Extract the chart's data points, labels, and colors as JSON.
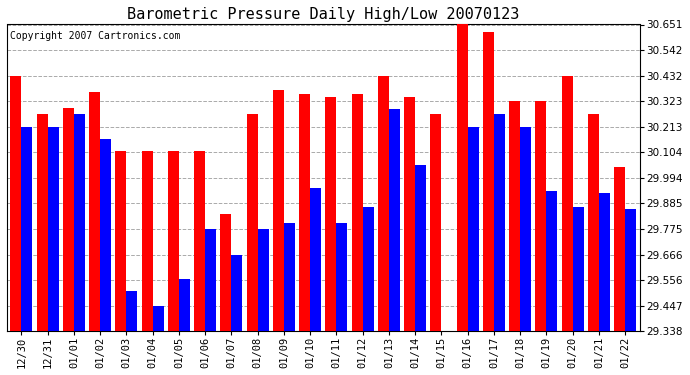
{
  "title": "Barometric Pressure Daily High/Low 20070123",
  "copyright": "Copyright 2007 Cartronics.com",
  "dates": [
    "12/30",
    "12/31",
    "01/01",
    "01/02",
    "01/03",
    "01/04",
    "01/05",
    "01/06",
    "01/07",
    "01/08",
    "01/09",
    "01/10",
    "01/11",
    "01/12",
    "01/13",
    "01/14",
    "01/15",
    "01/16",
    "01/17",
    "01/18",
    "01/19",
    "01/20",
    "01/21",
    "01/22"
  ],
  "highs": [
    30.432,
    30.27,
    30.295,
    30.36,
    30.11,
    30.11,
    30.11,
    30.108,
    29.84,
    30.27,
    30.37,
    30.355,
    30.34,
    30.355,
    30.432,
    30.34,
    30.27,
    30.651,
    30.62,
    30.323,
    30.323,
    30.432,
    30.27,
    30.04
  ],
  "lows": [
    30.213,
    30.213,
    30.27,
    30.16,
    29.51,
    29.447,
    29.56,
    29.775,
    29.666,
    29.775,
    29.8,
    29.95,
    29.8,
    29.87,
    30.29,
    30.05,
    29.27,
    30.213,
    30.27,
    30.213,
    29.94,
    29.87,
    29.93,
    29.86
  ],
  "ylim_min": 29.338,
  "ylim_max": 30.651,
  "yticks": [
    29.338,
    29.447,
    29.556,
    29.666,
    29.775,
    29.885,
    29.994,
    30.104,
    30.213,
    30.323,
    30.432,
    30.542,
    30.651
  ],
  "high_color": "#FF0000",
  "low_color": "#0000FF",
  "bg_color": "#FFFFFF",
  "plot_bg_color": "#FFFFFF",
  "grid_color": "#AAAAAA",
  "title_fontsize": 11,
  "copyright_fontsize": 7,
  "tick_fontsize": 7.5,
  "bar_width": 0.42
}
